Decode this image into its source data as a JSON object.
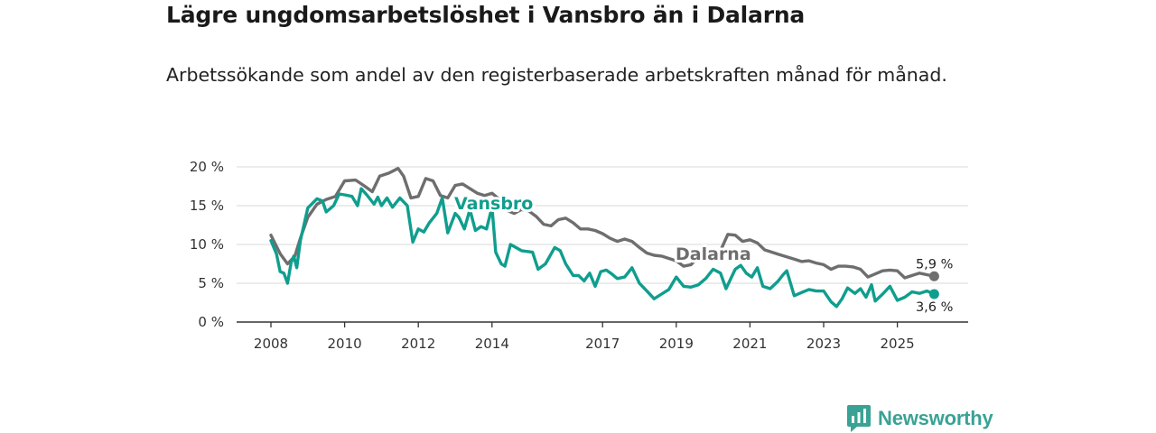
{
  "title": "Lägre ungdomsarbetslöshet i Vansbro än i Dalarna",
  "subtitle": "Arbetssökande som andel av den registerbaserade arbetskraften månad för månad.",
  "brand": {
    "name": "Newsworthy",
    "icon": "newsworthy-logo-icon"
  },
  "colors": {
    "vansbro": "#0f9e8e",
    "dalarna": "#6e6e6e",
    "grid": "#d9d9d9",
    "brand": "#3aa295"
  },
  "chart_data": {
    "type": "line",
    "title": "Lägre ungdomsarbetslöshet i Vansbro än i Dalarna",
    "xlabel": "",
    "ylabel": "",
    "xlim": [
      2008,
      2026.1
    ],
    "ylim": [
      0,
      20
    ],
    "yticks": [
      0,
      5,
      10,
      15,
      20
    ],
    "ytick_labels": [
      "0 %",
      "5 %",
      "10 %",
      "15 %",
      "20 %"
    ],
    "xticks": [
      2008,
      2010,
      2012,
      2014,
      2017,
      2019,
      2021,
      2023,
      2025
    ],
    "xtick_labels": [
      "2008",
      "2010",
      "2012",
      "2014",
      "2017",
      "2019",
      "2021",
      "2023",
      "2025"
    ],
    "grid": true,
    "series": [
      {
        "name": "Dalarna",
        "end_label": "5,9 %",
        "points": [
          [
            2008,
            11.2
          ],
          [
            2008.25,
            8.8
          ],
          [
            2008.45,
            7.5
          ],
          [
            2008.65,
            8.5
          ],
          [
            2008.8,
            10.8
          ],
          [
            2009,
            13.5
          ],
          [
            2009.25,
            15.2
          ],
          [
            2009.5,
            15.8
          ],
          [
            2009.75,
            16.2
          ],
          [
            2010,
            18.2
          ],
          [
            2010.3,
            18.3
          ],
          [
            2010.55,
            17.5
          ],
          [
            2010.75,
            16.8
          ],
          [
            2010.95,
            18.8
          ],
          [
            2011.2,
            19.2
          ],
          [
            2011.45,
            19.8
          ],
          [
            2011.6,
            18.8
          ],
          [
            2011.8,
            16
          ],
          [
            2012,
            16.2
          ],
          [
            2012.2,
            18.5
          ],
          [
            2012.4,
            18.2
          ],
          [
            2012.6,
            16.3
          ],
          [
            2012.8,
            16
          ],
          [
            2013,
            17.6
          ],
          [
            2013.2,
            17.8
          ],
          [
            2013.4,
            17.2
          ],
          [
            2013.6,
            16.6
          ],
          [
            2013.8,
            16.3
          ],
          [
            2014,
            16.6
          ],
          [
            2014.2,
            15.8
          ],
          [
            2014.4,
            14.4
          ],
          [
            2014.6,
            14
          ],
          [
            2014.8,
            14.5
          ],
          [
            2015,
            14.3
          ],
          [
            2015.2,
            13.6
          ],
          [
            2015.4,
            12.6
          ],
          [
            2015.6,
            12.4
          ],
          [
            2015.8,
            13.2
          ],
          [
            2016,
            13.4
          ],
          [
            2016.2,
            12.8
          ],
          [
            2016.4,
            12
          ],
          [
            2016.6,
            12
          ],
          [
            2016.8,
            11.8
          ],
          [
            2017,
            11.4
          ],
          [
            2017.2,
            10.8
          ],
          [
            2017.4,
            10.4
          ],
          [
            2017.6,
            10.7
          ],
          [
            2017.8,
            10.4
          ],
          [
            2018,
            9.6
          ],
          [
            2018.2,
            8.9
          ],
          [
            2018.4,
            8.6
          ],
          [
            2018.6,
            8.5
          ],
          [
            2018.8,
            8.2
          ],
          [
            2019,
            7.9
          ],
          [
            2019.2,
            7.2
          ],
          [
            2019.4,
            7.4
          ],
          [
            2019.6,
            8.4
          ],
          [
            2019.8,
            8.5
          ],
          [
            2020,
            8.4
          ],
          [
            2020.2,
            9.2
          ],
          [
            2020.4,
            11.3
          ],
          [
            2020.6,
            11.2
          ],
          [
            2020.8,
            10.4
          ],
          [
            2021,
            10.6
          ],
          [
            2021.2,
            10.2
          ],
          [
            2021.4,
            9.3
          ],
          [
            2021.6,
            9
          ],
          [
            2021.8,
            8.7
          ],
          [
            2022,
            8.4
          ],
          [
            2022.2,
            8.1
          ],
          [
            2022.4,
            7.8
          ],
          [
            2022.6,
            7.9
          ],
          [
            2022.8,
            7.6
          ],
          [
            2023,
            7.4
          ],
          [
            2023.2,
            6.8
          ],
          [
            2023.4,
            7.2
          ],
          [
            2023.6,
            7.2
          ],
          [
            2023.8,
            7.1
          ],
          [
            2024,
            6.8
          ],
          [
            2024.2,
            5.8
          ],
          [
            2024.4,
            6.2
          ],
          [
            2024.6,
            6.6
          ],
          [
            2024.8,
            6.7
          ],
          [
            2025,
            6.6
          ],
          [
            2025.2,
            5.7
          ],
          [
            2025.4,
            6
          ],
          [
            2025.6,
            6.3
          ],
          [
            2025.8,
            6.1
          ],
          [
            2026,
            5.9
          ]
        ]
      },
      {
        "name": "Vansbro",
        "end_label": "3,6 %",
        "points": [
          [
            2008,
            10.5
          ],
          [
            2008.15,
            8.8
          ],
          [
            2008.25,
            6.5
          ],
          [
            2008.35,
            6.3
          ],
          [
            2008.45,
            5
          ],
          [
            2008.55,
            7.7
          ],
          [
            2008.62,
            8.5
          ],
          [
            2008.7,
            7
          ],
          [
            2008.8,
            10.5
          ],
          [
            2009,
            14.7
          ],
          [
            2009.25,
            15.9
          ],
          [
            2009.4,
            15.6
          ],
          [
            2009.5,
            14.2
          ],
          [
            2009.7,
            15
          ],
          [
            2009.85,
            16.5
          ],
          [
            2010,
            16.4
          ],
          [
            2010.2,
            16.2
          ],
          [
            2010.35,
            15
          ],
          [
            2010.45,
            17.2
          ],
          [
            2010.6,
            16.4
          ],
          [
            2010.8,
            15.2
          ],
          [
            2010.9,
            16.1
          ],
          [
            2011,
            15
          ],
          [
            2011.15,
            16
          ],
          [
            2011.3,
            14.8
          ],
          [
            2011.5,
            16
          ],
          [
            2011.7,
            15
          ],
          [
            2011.85,
            10.3
          ],
          [
            2012,
            12
          ],
          [
            2012.15,
            11.6
          ],
          [
            2012.3,
            12.8
          ],
          [
            2012.5,
            14
          ],
          [
            2012.65,
            16
          ],
          [
            2012.8,
            11.5
          ],
          [
            2013,
            14
          ],
          [
            2013.1,
            13.5
          ],
          [
            2013.25,
            12
          ],
          [
            2013.4,
            14.5
          ],
          [
            2013.55,
            11.8
          ],
          [
            2013.7,
            12.3
          ],
          [
            2013.85,
            12
          ],
          [
            2014,
            14.8
          ],
          [
            2014.1,
            9
          ],
          [
            2014.25,
            7.5
          ],
          [
            2014.35,
            7.2
          ],
          [
            2014.5,
            10
          ],
          [
            2014.65,
            9.6
          ],
          [
            2014.8,
            9.2
          ],
          [
            2015.1,
            9
          ],
          [
            2015.25,
            6.8
          ],
          [
            2015.45,
            7.5
          ],
          [
            2015.7,
            9.6
          ],
          [
            2015.85,
            9.2
          ],
          [
            2016,
            7.5
          ],
          [
            2016.2,
            6
          ],
          [
            2016.35,
            6
          ],
          [
            2016.5,
            5.3
          ],
          [
            2016.65,
            6.3
          ],
          [
            2016.8,
            4.6
          ],
          [
            2016.95,
            6.5
          ],
          [
            2017.1,
            6.7
          ],
          [
            2017.25,
            6.2
          ],
          [
            2017.4,
            5.6
          ],
          [
            2017.6,
            5.8
          ],
          [
            2017.8,
            7
          ],
          [
            2018,
            5
          ],
          [
            2018.2,
            4
          ],
          [
            2018.4,
            3
          ],
          [
            2018.6,
            3.6
          ],
          [
            2018.8,
            4.2
          ],
          [
            2019,
            5.8
          ],
          [
            2019.2,
            4.6
          ],
          [
            2019.4,
            4.5
          ],
          [
            2019.6,
            4.8
          ],
          [
            2019.8,
            5.6
          ],
          [
            2020,
            6.8
          ],
          [
            2020.2,
            6.3
          ],
          [
            2020.35,
            4.3
          ],
          [
            2020.5,
            5.8
          ],
          [
            2020.6,
            6.8
          ],
          [
            2020.75,
            7.3
          ],
          [
            2020.9,
            6.3
          ],
          [
            2021.05,
            5.8
          ],
          [
            2021.2,
            7
          ],
          [
            2021.35,
            4.6
          ],
          [
            2021.55,
            4.3
          ],
          [
            2021.75,
            5.2
          ],
          [
            2021.9,
            6.1
          ],
          [
            2022,
            6.6
          ],
          [
            2022.1,
            5
          ],
          [
            2022.2,
            3.4
          ],
          [
            2022.4,
            3.8
          ],
          [
            2022.6,
            4.2
          ],
          [
            2022.8,
            4
          ],
          [
            2023,
            4
          ],
          [
            2023.2,
            2.6
          ],
          [
            2023.35,
            2
          ],
          [
            2023.5,
            3
          ],
          [
            2023.65,
            4.4
          ],
          [
            2023.85,
            3.7
          ],
          [
            2024,
            4.3
          ],
          [
            2024.15,
            3.2
          ],
          [
            2024.3,
            4.8
          ],
          [
            2024.4,
            2.7
          ],
          [
            2024.6,
            3.6
          ],
          [
            2024.8,
            4.6
          ],
          [
            2025,
            2.8
          ],
          [
            2025.2,
            3.2
          ],
          [
            2025.4,
            3.9
          ],
          [
            2025.6,
            3.7
          ],
          [
            2025.8,
            4
          ],
          [
            2026,
            3.6
          ]
        ]
      }
    ]
  }
}
